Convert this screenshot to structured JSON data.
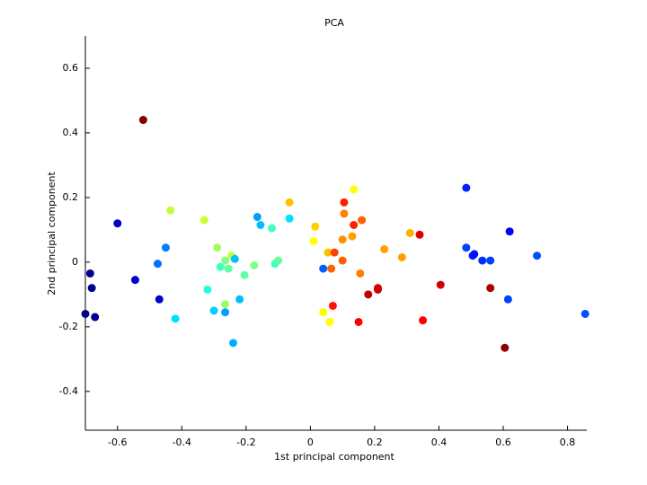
{
  "chart_data": {
    "type": "scatter",
    "title": "PCA",
    "x_label": "1st principal component",
    "y_label": "2nd principal component",
    "xlim": [
      -0.7,
      0.86
    ],
    "ylim": [
      -0.52,
      0.7
    ],
    "xticks": [
      -0.6,
      -0.4,
      -0.2,
      0,
      0.2,
      0.4,
      0.6,
      0.8
    ],
    "yticks": [
      -0.4,
      -0.2,
      0,
      0.2,
      0.4,
      0.6
    ],
    "grid": false,
    "x": [
      -0.52,
      -0.6,
      -0.685,
      -0.68,
      -0.7,
      -0.67,
      -0.545,
      -0.47,
      -0.45,
      -0.475,
      -0.42,
      -0.435,
      -0.33,
      -0.29,
      -0.32,
      -0.3,
      -0.28,
      -0.265,
      -0.255,
      -0.245,
      -0.235,
      -0.265,
      -0.265,
      -0.22,
      -0.24,
      -0.205,
      -0.175,
      -0.165,
      -0.155,
      -0.12,
      -0.11,
      -0.1,
      -0.065,
      -0.065,
      0.015,
      0.01,
      0.04,
      0.04,
      0.06,
      0.055,
      0.065,
      0.075,
      0.07,
      0.105,
      0.105,
      0.1,
      0.1,
      0.13,
      0.135,
      0.135,
      0.16,
      0.155,
      0.15,
      0.18,
      0.21,
      0.21,
      0.23,
      0.285,
      0.31,
      0.34,
      0.35,
      0.405,
      0.485,
      0.485,
      0.505,
      0.51,
      0.535,
      0.56,
      0.56,
      0.62,
      0.615,
      0.605,
      0.705,
      0.855
    ],
    "values": [
      0.44,
      0.12,
      -0.035,
      -0.08,
      -0.16,
      -0.17,
      -0.055,
      -0.115,
      0.045,
      -0.005,
      -0.175,
      0.16,
      0.13,
      0.045,
      -0.085,
      -0.15,
      -0.015,
      0.005,
      -0.02,
      0.02,
      0.01,
      -0.13,
      -0.155,
      -0.115,
      -0.25,
      -0.04,
      -0.01,
      0.14,
      0.115,
      0.105,
      -0.005,
      0.005,
      0.135,
      0.185,
      0.11,
      0.065,
      -0.02,
      -0.155,
      -0.185,
      0.03,
      -0.02,
      0.03,
      -0.135,
      0.185,
      0.15,
      0.07,
      0.005,
      0.08,
      0.115,
      0.225,
      0.13,
      -0.035,
      -0.185,
      -0.1,
      -0.08,
      -0.085,
      0.04,
      0.015,
      0.09,
      0.085,
      -0.18,
      -0.07,
      0.23,
      0.045,
      0.02,
      0.025,
      0.005,
      0.005,
      -0.08,
      0.095,
      -0.115,
      -0.265,
      0.02,
      -0.16
    ],
    "colors": [
      "#800000",
      "#0000c0",
      "#000090",
      "#000090",
      "#000080",
      "#000090",
      "#0000d0",
      "#0000c8",
      "#0080ff",
      "#0070ff",
      "#00e0ff",
      "#c0ff40",
      "#d0ff30",
      "#a0ff60",
      "#20ffe0",
      "#00d0ff",
      "#40ffc0",
      "#80ff80",
      "#60ffa0",
      "#c0ff40",
      "#00c0ff",
      "#a0ff60",
      "#00a0ff",
      "#00c0ff",
      "#00b0ff",
      "#60ffa0",
      "#80ff80",
      "#00a0ff",
      "#00c0ff",
      "#40ffc0",
      "#40ffc0",
      "#60ffa0",
      "#00e0ff",
      "#ffc000",
      "#ffd000",
      "#ffff00",
      "#0060ff",
      "#ffff00",
      "#ffff00",
      "#ffc000",
      "#ff6000",
      "#ff4000",
      "#ff1000",
      "#ff2000",
      "#ff8000",
      "#ff9000",
      "#ff6000",
      "#ffa000",
      "#ff2000",
      "#ffff00",
      "#ff6000",
      "#ff8000",
      "#ff0000",
      "#c00000",
      "#e00000",
      "#d00000",
      "#ffa000",
      "#ffa000",
      "#ffb000",
      "#e00000",
      "#ff0000",
      "#d00000",
      "#0020ff",
      "#0040ff",
      "#0020ff",
      "#0010ff",
      "#0030ff",
      "#0040ff",
      "#b00000",
      "#0000ff",
      "#0040ff",
      "#900000",
      "#0050ff",
      "#0050ff"
    ]
  }
}
